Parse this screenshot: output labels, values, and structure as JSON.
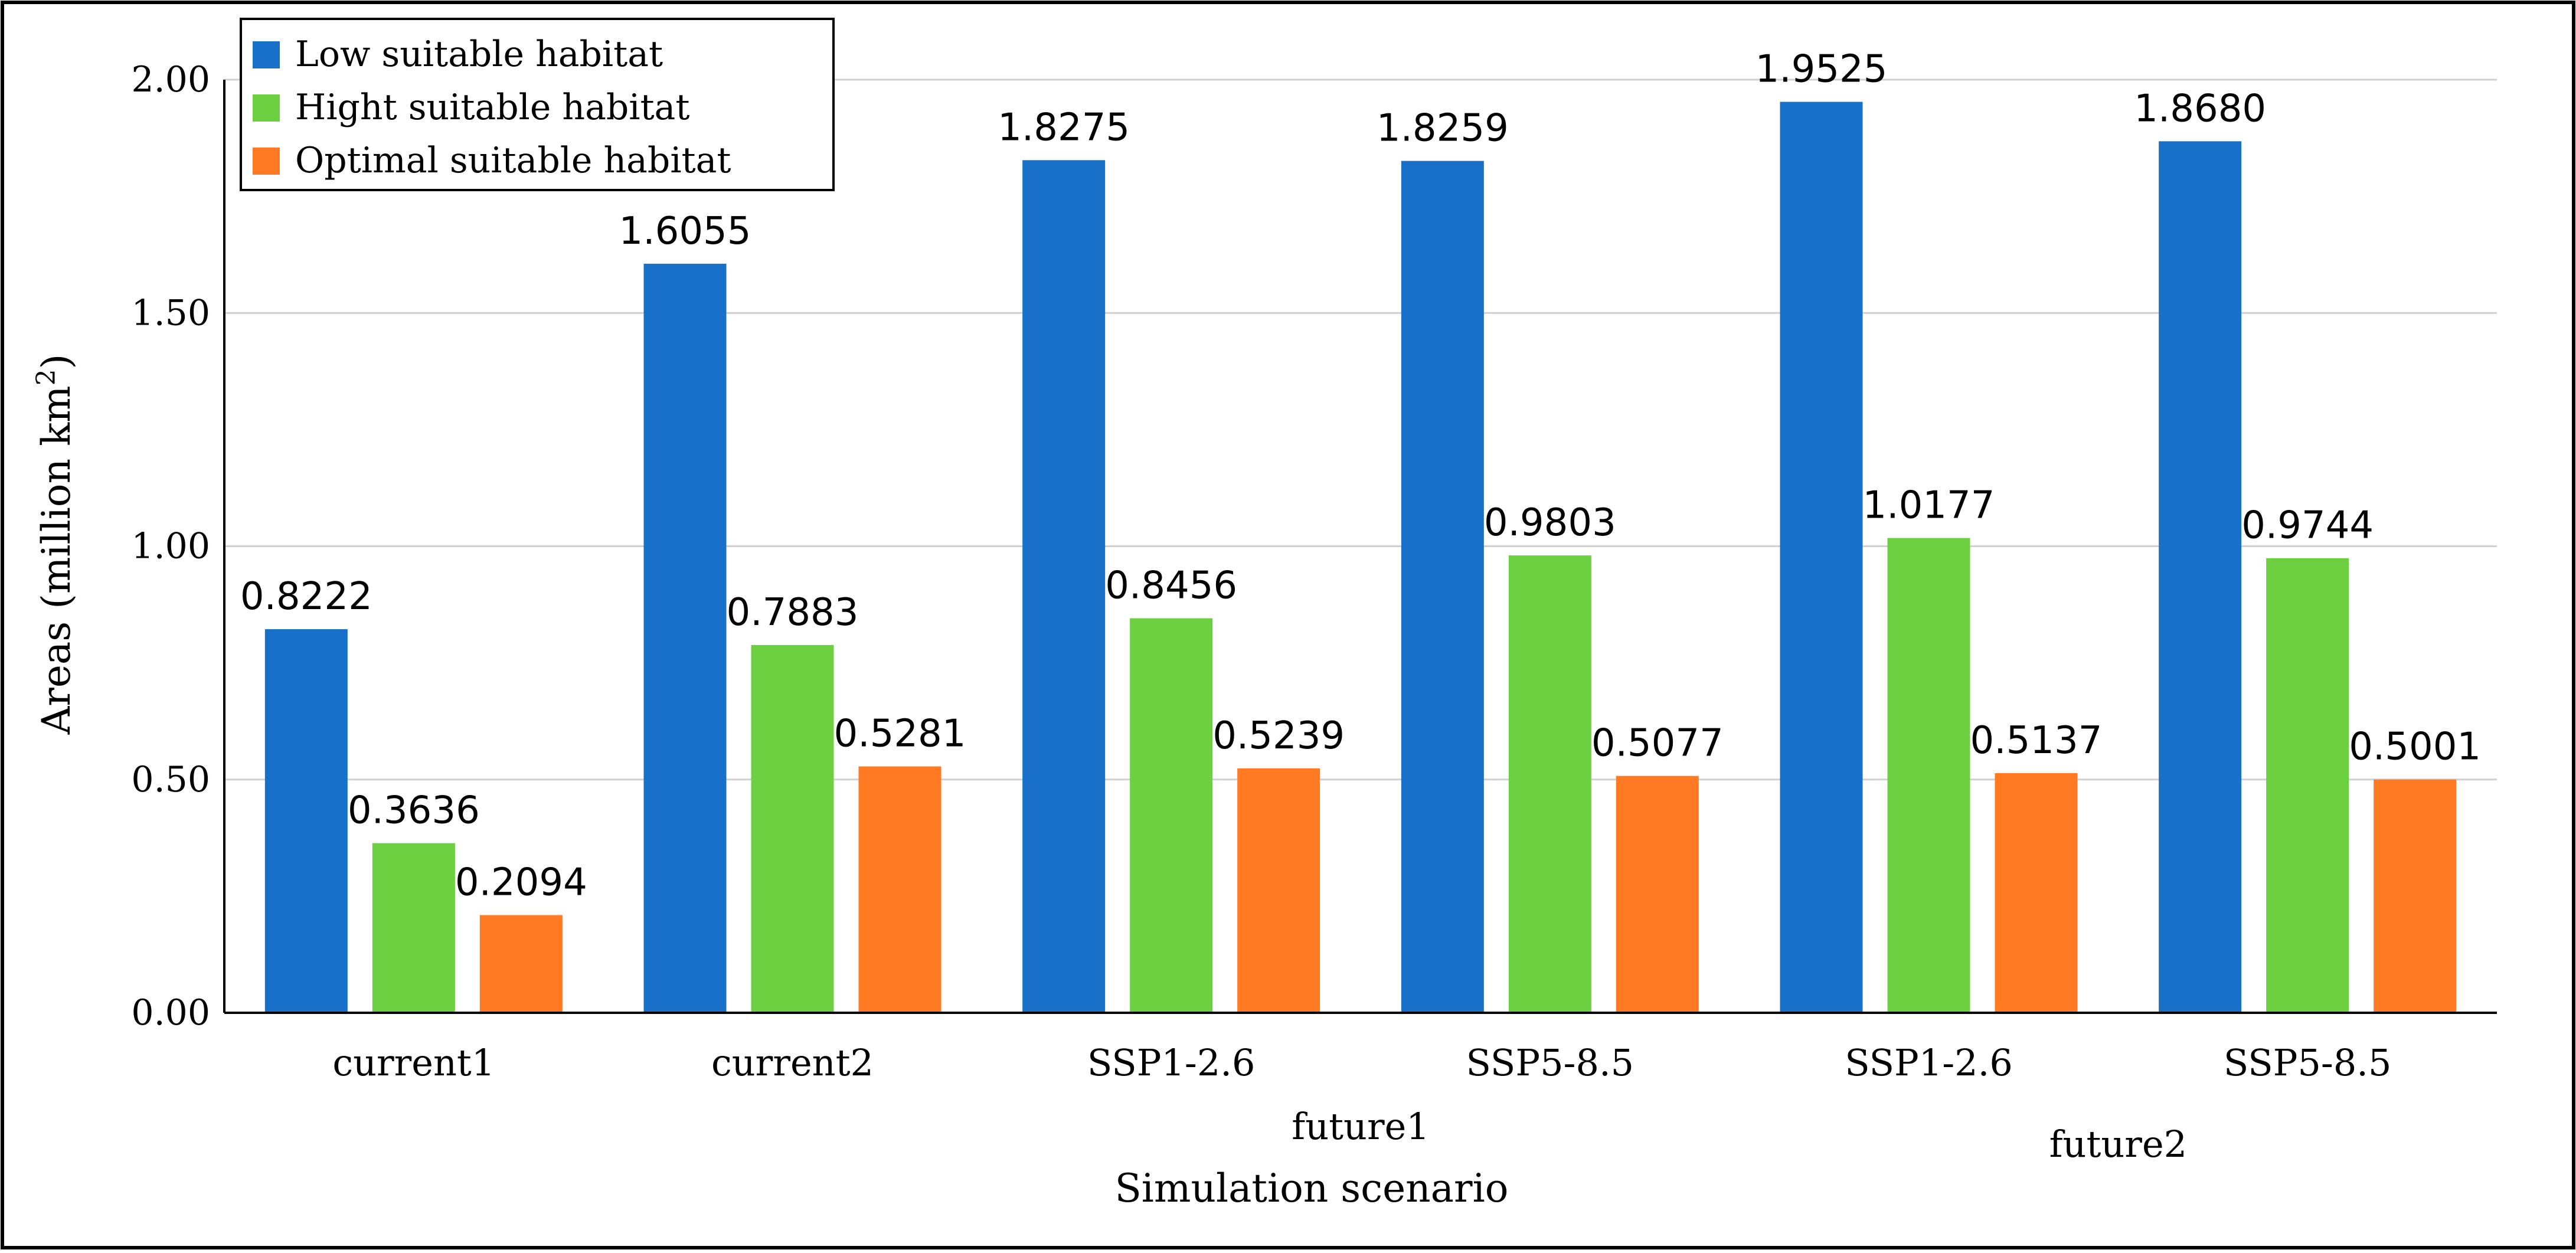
{
  "chart_data": {
    "type": "bar",
    "title": "",
    "ylabel": "Areas (million km",
    "ylabel_superscript": "2",
    "ylabel_suffix": ")",
    "xlabel": "Simulation scenario",
    "ylim": [
      0,
      2.0
    ],
    "yticks": [
      "0.00",
      "0.50",
      "1.00",
      "1.50",
      "2.00"
    ],
    "ytick_values": [
      0,
      0.5,
      1.0,
      1.5,
      2.0
    ],
    "grid": true,
    "legend_position": "top-left",
    "categories": [
      "current1",
      "current2",
      "SSP1-2.6",
      "SSP5-8.5",
      "SSP1-2.6",
      "SSP5-8.5"
    ],
    "category_groups": [
      {
        "label": "future1",
        "span": [
          2,
          3
        ]
      },
      {
        "label": "future2",
        "span": [
          4,
          5
        ]
      }
    ],
    "series": [
      {
        "name": "Low suitable habitat",
        "color": "#1870C8",
        "values": [
          0.8222,
          1.6055,
          1.8275,
          1.8259,
          1.9525,
          1.868
        ],
        "labels": [
          "0.8222",
          "1.6055",
          "1.8275",
          "1.8259",
          "1.9525",
          "1.8680"
        ]
      },
      {
        "name": "Hight suitable habitat",
        "color": "#6CD040",
        "values": [
          0.3636,
          0.7883,
          0.8456,
          0.9803,
          1.0177,
          0.9744
        ],
        "labels": [
          "0.3636",
          "0.7883",
          "0.8456",
          "0.9803",
          "1.0177",
          "0.9744"
        ]
      },
      {
        "name": "Optimal suitable habitat",
        "color": "#FF7A22",
        "values": [
          0.2094,
          0.5281,
          0.5239,
          0.5077,
          0.5137,
          0.5001
        ],
        "labels": [
          "0.2094",
          "0.5281",
          "0.5239",
          "0.5077",
          "0.5137",
          "0.5001"
        ]
      }
    ]
  }
}
